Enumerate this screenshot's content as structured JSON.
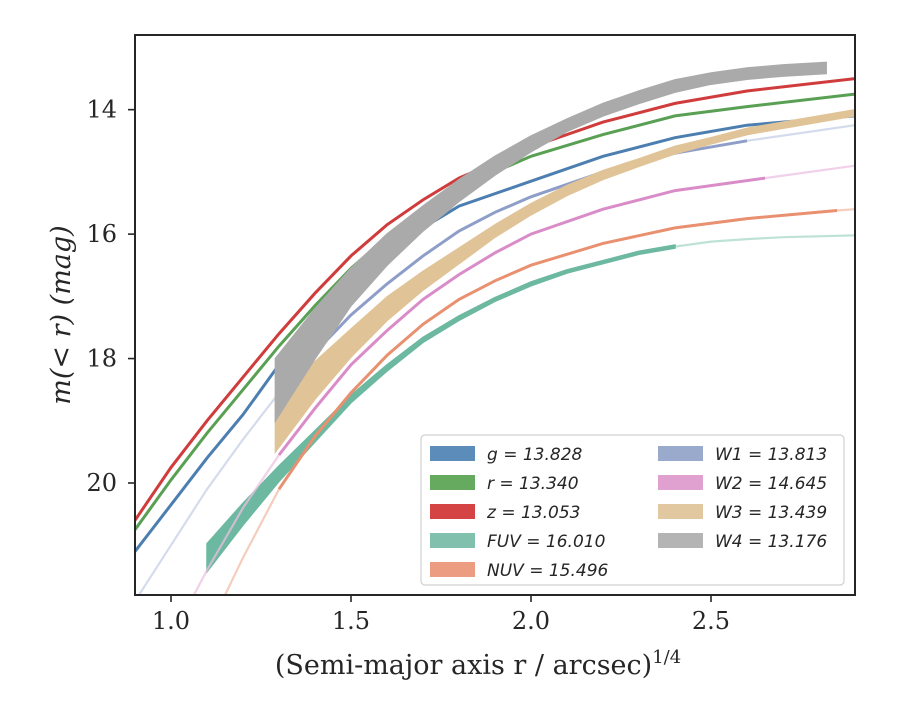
{
  "chart_data": {
    "type": "line",
    "title": "",
    "xlabel": "(Semi-major axis r / arcsec)",
    "xlabel_exponent": "1/4",
    "ylabel": "m(< r) (mag)",
    "xlim": [
      0.9,
      2.9
    ],
    "ylim": [
      21.8,
      12.8
    ],
    "y_inverted": true,
    "grid": false,
    "legend_position": "lower-right",
    "x_ticks": [
      {
        "value": 1.0,
        "label": "1.0"
      },
      {
        "value": 1.5,
        "label": "1.5"
      },
      {
        "value": 2.0,
        "label": "2.0"
      },
      {
        "value": 2.5,
        "label": "2.5"
      }
    ],
    "y_ticks": [
      {
        "value": 14,
        "label": "14"
      },
      {
        "value": 16,
        "label": "16"
      },
      {
        "value": 18,
        "label": "18"
      },
      {
        "value": 20,
        "label": "20"
      }
    ],
    "series": [
      {
        "name": "g",
        "label": "g = 13.828",
        "color": "#4c7fb0",
        "faded_color": "#4c7fb0",
        "band": false,
        "solid_range": [
          0.9,
          2.9
        ],
        "x": [
          0.9,
          1.0,
          1.1,
          1.2,
          1.3,
          1.4,
          1.5,
          1.6,
          1.7,
          1.8,
          2.0,
          2.2,
          2.4,
          2.6,
          2.9
        ],
        "y": [
          21.1,
          20.35,
          19.6,
          18.9,
          18.1,
          17.4,
          16.8,
          16.3,
          15.9,
          15.55,
          15.15,
          14.75,
          14.45,
          14.25,
          14.1
        ]
      },
      {
        "name": "r",
        "label": "r = 13.340",
        "color": "#5aa054",
        "faded_color": "#5aa054",
        "band": false,
        "solid_range": [
          0.9,
          2.9
        ],
        "x": [
          0.9,
          1.0,
          1.1,
          1.2,
          1.3,
          1.4,
          1.5,
          1.6,
          1.7,
          1.8,
          2.0,
          2.2,
          2.4,
          2.6,
          2.9
        ],
        "y": [
          20.75,
          19.95,
          19.2,
          18.5,
          17.8,
          17.15,
          16.55,
          16.05,
          15.6,
          15.25,
          14.75,
          14.4,
          14.1,
          13.95,
          13.75
        ]
      },
      {
        "name": "z",
        "label": "z = 13.053",
        "color": "#d03c3c",
        "faded_color": "#d03c3c",
        "band": false,
        "solid_range": [
          0.9,
          2.9
        ],
        "x": [
          0.9,
          1.0,
          1.1,
          1.2,
          1.3,
          1.4,
          1.5,
          1.6,
          1.7,
          1.8,
          2.0,
          2.2,
          2.4,
          2.6,
          2.9
        ],
        "y": [
          20.6,
          19.75,
          19.0,
          18.3,
          17.6,
          16.95,
          16.35,
          15.85,
          15.45,
          15.1,
          14.6,
          14.2,
          13.9,
          13.7,
          13.5
        ]
      },
      {
        "name": "FUV",
        "label": "FUV = 16.010",
        "color": "#6cb8a0",
        "faded_color": "#a8d8c8",
        "band": true,
        "solid_range": [
          1.1,
          2.4
        ],
        "x": [
          1.1,
          1.2,
          1.3,
          1.4,
          1.5,
          1.6,
          1.7,
          1.8,
          1.9,
          2.0,
          2.1,
          2.2,
          2.3,
          2.4,
          2.5,
          2.6,
          2.7,
          2.9
        ],
        "y": [
          21.2,
          20.5,
          19.85,
          19.25,
          18.65,
          18.15,
          17.7,
          17.35,
          17.05,
          16.8,
          16.6,
          16.45,
          16.3,
          16.2,
          16.12,
          16.08,
          16.05,
          16.02
        ],
        "width": [
          0.45,
          0.35,
          0.25,
          0.18,
          0.12,
          0.1,
          0.08,
          0.07,
          0.06,
          0.06,
          0.05,
          0.05,
          0.05,
          0.05,
          0.03,
          0.03,
          0.03,
          0.03
        ]
      },
      {
        "name": "NUV",
        "label": "NUV = 15.496",
        "color": "#e89070",
        "faded_color": "#f0bca6",
        "band": false,
        "solid_range": [
          1.3,
          2.85
        ],
        "x": [
          1.15,
          1.2,
          1.3,
          1.4,
          1.5,
          1.6,
          1.7,
          1.8,
          1.9,
          2.0,
          2.2,
          2.4,
          2.6,
          2.85,
          2.9
        ],
        "y": [
          21.8,
          21.2,
          20.1,
          19.25,
          18.55,
          17.95,
          17.45,
          17.05,
          16.75,
          16.5,
          16.15,
          15.9,
          15.75,
          15.62,
          15.6
        ]
      },
      {
        "name": "W1",
        "label": "W1 = 13.813",
        "color": "#8e9ec8",
        "faded_color": "#c5cfe6",
        "band": false,
        "solid_range": [
          1.3,
          2.6
        ],
        "x": [
          0.9,
          1.0,
          1.1,
          1.2,
          1.3,
          1.4,
          1.5,
          1.6,
          1.7,
          1.8,
          1.9,
          2.0,
          2.2,
          2.4,
          2.6,
          2.9
        ],
        "y": [
          21.9,
          21.0,
          20.1,
          19.3,
          18.55,
          17.9,
          17.3,
          16.8,
          16.35,
          15.95,
          15.65,
          15.4,
          15.0,
          14.7,
          14.5,
          14.25
        ]
      },
      {
        "name": "W2",
        "label": "W2 = 14.645",
        "color": "#d98cc8",
        "faded_color": "#ecc0e2",
        "band": false,
        "solid_range": [
          1.3,
          2.65
        ],
        "x": [
          0.9,
          1.0,
          1.1,
          1.2,
          1.3,
          1.4,
          1.5,
          1.6,
          1.7,
          1.8,
          1.9,
          2.0,
          2.2,
          2.4,
          2.65,
          2.9
        ],
        "y": [
          23.5,
          22.5,
          21.4,
          20.4,
          19.55,
          18.8,
          18.1,
          17.55,
          17.05,
          16.65,
          16.3,
          16.0,
          15.6,
          15.3,
          15.1,
          14.9
        ]
      },
      {
        "name": "W3",
        "label": "W3 = 13.439",
        "color": "#e0c498",
        "faded_color": "#efdcc0",
        "band": true,
        "solid_range": [
          1.29,
          2.9
        ],
        "x": [
          1.29,
          1.4,
          1.5,
          1.6,
          1.7,
          1.8,
          1.9,
          2.0,
          2.1,
          2.2,
          2.3,
          2.4,
          2.5,
          2.6,
          2.7,
          2.9
        ],
        "y": [
          19.05,
          18.35,
          17.75,
          17.2,
          16.75,
          16.35,
          15.95,
          15.6,
          15.3,
          15.05,
          14.85,
          14.65,
          14.5,
          14.35,
          14.25,
          14.05
        ],
        "width": [
          0.9,
          0.6,
          0.45,
          0.38,
          0.3,
          0.25,
          0.2,
          0.18,
          0.16,
          0.14,
          0.12,
          0.12,
          0.1,
          0.1,
          0.1,
          0.1
        ]
      },
      {
        "name": "W4",
        "label": "W4 = 13.176",
        "color": "#aaaaaa",
        "faded_color": "#cccccc",
        "band": true,
        "solid_range": [
          1.29,
          2.82
        ],
        "x": [
          1.29,
          1.4,
          1.5,
          1.6,
          1.7,
          1.8,
          1.9,
          2.0,
          2.1,
          2.2,
          2.3,
          2.4,
          2.5,
          2.6,
          2.7,
          2.82
        ],
        "y": [
          18.5,
          17.6,
          16.85,
          16.25,
          15.75,
          15.3,
          14.9,
          14.55,
          14.25,
          14.0,
          13.8,
          13.62,
          13.5,
          13.42,
          13.37,
          13.33
        ],
        "width": [
          1.0,
          0.8,
          0.6,
          0.5,
          0.4,
          0.35,
          0.3,
          0.25,
          0.2,
          0.2,
          0.2,
          0.2,
          0.18,
          0.18,
          0.18,
          0.18
        ]
      }
    ],
    "legend": [
      {
        "label": "g = 13.828",
        "color": "#5b8cba"
      },
      {
        "label": "r = 13.340",
        "color": "#66aa60"
      },
      {
        "label": "z = 13.053",
        "color": "#d44444"
      },
      {
        "label": "FUV = 16.010",
        "color": "#80c0ac"
      },
      {
        "label": "NUV = 15.496",
        "color": "#ec9c80"
      },
      {
        "label": "W1 = 13.813",
        "color": "#9aaacc"
      },
      {
        "label": "W2 = 14.645",
        "color": "#e0a0d0"
      },
      {
        "label": "W3 = 13.439",
        "color": "#e2c8a0"
      },
      {
        "label": "W4 = 13.176",
        "color": "#b4b4b4"
      }
    ]
  }
}
